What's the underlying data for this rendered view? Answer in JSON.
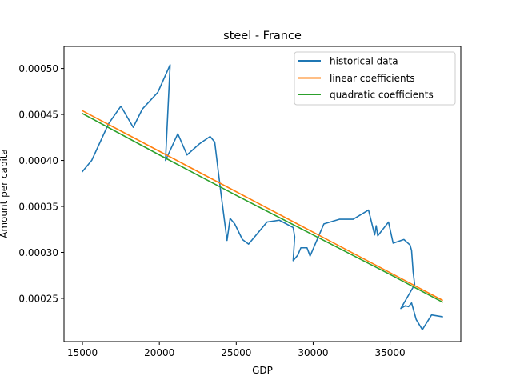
{
  "chart_data": {
    "type": "line",
    "title": "steel - France",
    "xlabel": "GDP",
    "ylabel": "Amount per capita",
    "xlim": [
      13800,
      39600
    ],
    "ylim": [
      0.000203,
      0.000524
    ],
    "x_ticks": [
      15000,
      20000,
      25000,
      30000,
      35000
    ],
    "x_tick_labels": [
      "15000",
      "20000",
      "25000",
      "30000",
      "35000"
    ],
    "y_ticks": [
      0.00025,
      0.0003,
      0.00035,
      0.0004,
      0.00045,
      0.0005
    ],
    "y_tick_labels": [
      "0.00025",
      "0.00030",
      "0.00035",
      "0.00040",
      "0.00045",
      "0.00050"
    ],
    "grid": false,
    "legend_position": "top-right",
    "series": [
      {
        "name": "historical data",
        "color": "#1f77b4",
        "x": [
          15000,
          15600,
          16700,
          17500,
          18300,
          18900,
          19900,
          20700,
          20400,
          21200,
          21800,
          22600,
          23300,
          23600,
          24000,
          24400,
          24600,
          24900,
          25400,
          25800,
          27000,
          27800,
          28700,
          28800,
          28700,
          29000,
          29200,
          29600,
          29800,
          30700,
          31700,
          32600,
          33600,
          34000,
          34100,
          34200,
          34900,
          35200,
          35900,
          36300,
          36400,
          36500,
          36600,
          35700,
          36000,
          36200,
          36400,
          36700,
          37100,
          37700,
          38400
        ],
        "y": [
          0.000388,
          0.0004,
          0.00044,
          0.000459,
          0.000436,
          0.000456,
          0.000474,
          0.000504,
          0.0004,
          0.000429,
          0.000406,
          0.000418,
          0.000426,
          0.00042,
          0.000365,
          0.000313,
          0.000337,
          0.000331,
          0.000314,
          0.000309,
          0.000333,
          0.000335,
          0.000327,
          0.000317,
          0.000291,
          0.000297,
          0.000305,
          0.000305,
          0.000296,
          0.000331,
          0.000336,
          0.000336,
          0.000346,
          0.000319,
          0.000329,
          0.000318,
          0.000333,
          0.00031,
          0.000314,
          0.000308,
          0.000302,
          0.000279,
          0.000265,
          0.000239,
          0.000242,
          0.000241,
          0.000245,
          0.000227,
          0.000216,
          0.000232,
          0.00023
        ]
      },
      {
        "name": "linear coefficients",
        "color": "#ff7f0e",
        "x": [
          15000,
          38400
        ],
        "y": [
          0.000454,
          0.000248
        ]
      },
      {
        "name": "quadratic coefficients",
        "color": "#2ca02c",
        "x": [
          15000,
          20000,
          25000,
          30000,
          35000,
          38400
        ],
        "y": [
          0.000451,
          0.000406,
          0.000362,
          0.000319,
          0.000276,
          0.000246
        ]
      }
    ]
  }
}
